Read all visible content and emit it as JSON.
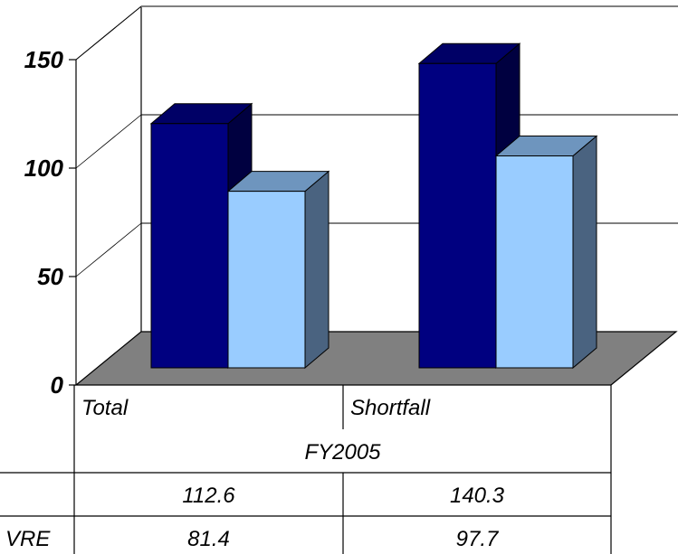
{
  "chart_data": {
    "type": "bar",
    "categories": [
      "Total",
      "Shortfall"
    ],
    "group_label": "FY2005",
    "series": [
      {
        "name": "",
        "values": [
          112.6,
          140.3
        ],
        "color": "#000080"
      },
      {
        "name": "VRE",
        "values": [
          81.4,
          97.7
        ],
        "color": "#99CCFF"
      }
    ],
    "ylim": [
      0,
      150
    ],
    "yticks": [
      0,
      50,
      100,
      150
    ],
    "grid": true,
    "data_table": {
      "rows": [
        {
          "label": "",
          "values": [
            "112.6",
            "140.3"
          ]
        },
        {
          "label": "VRE",
          "values": [
            "81.4",
            "97.7"
          ]
        }
      ]
    }
  }
}
